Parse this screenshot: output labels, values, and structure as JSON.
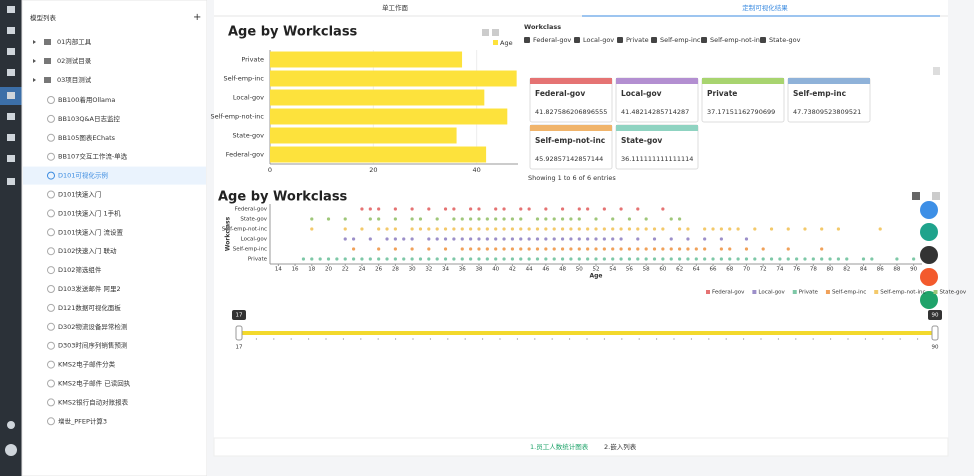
{
  "sidebar_title": "模型列表",
  "add_button": "+",
  "folders": [
    "01内部工具",
    "02测试目录",
    "03项目测试"
  ],
  "models": [
    {
      "label": "BB100着用Ollama"
    },
    {
      "label": "BB103Q&A日志监控"
    },
    {
      "label": "BB105图表EChats"
    },
    {
      "label": "BB107交互工作流-单选"
    },
    {
      "label": "D101可视化示例",
      "selected": true
    },
    {
      "label": "D101快速入门"
    },
    {
      "label": "D101快速入门 1手机"
    },
    {
      "label": "D101快速入门 流设置"
    },
    {
      "label": "D102快速入门 联动"
    },
    {
      "label": "D102筛选组件"
    },
    {
      "label": "D103发送邮件 阿里2"
    },
    {
      "label": "D121数据可视化面板"
    },
    {
      "label": "D302物流设备异常检测"
    },
    {
      "label": "D303时间序列销售预测"
    },
    {
      "label": "KMS2电子邮件分类"
    },
    {
      "label": "KMS2电子邮件 已读回执"
    },
    {
      "label": "KMS2银行自动对账报表"
    },
    {
      "label": "增世_PFEP计算3"
    }
  ],
  "tabs": [
    "单工作面",
    "定制可视化结果"
  ],
  "filter": {
    "title": "Workclass",
    "options": [
      "Federal-gov",
      "Local-gov",
      "Private",
      "Self-emp-inc",
      "Self-emp-not-inc",
      "State-gov"
    ]
  },
  "cards": [
    {
      "name": "Federal-gov",
      "value": 41.827586206896555,
      "color": "#e57373"
    },
    {
      "name": "Local-gov",
      "value": 41.48214285714287,
      "color": "#b38fd1"
    },
    {
      "name": "Private",
      "value": 37.17151162790699,
      "color": "#a8d46f"
    },
    {
      "name": "Self-emp-inc",
      "value": 47.73809523809521,
      "color": "#8fb2d9"
    },
    {
      "name": "Self-emp-not-inc",
      "value": 45.92857142857144,
      "color": "#f0b46b"
    },
    {
      "name": "State-gov",
      "value": 36.111111111111114,
      "color": "#8fd3c1"
    }
  ],
  "table_info": "Showing 1 to 6 of 6 entries",
  "chart_data": [
    {
      "type": "bar",
      "horizontal": true,
      "title": "Age by Workclass",
      "categories": [
        "Private",
        "Self-emp-inc",
        "Local-gov",
        "Self-emp-not-inc",
        "State-gov",
        "Federal-gov"
      ],
      "series": [
        {
          "name": "Age",
          "color": "#fde23c",
          "values": [
            37.17151162790699,
            47.73809523809521,
            41.48214285714287,
            45.92857142857144,
            36.111111111111114,
            41.827586206896555
          ]
        }
      ],
      "xlim": [
        0,
        48
      ],
      "xticks": [
        0,
        20,
        40
      ],
      "grid": true
    },
    {
      "type": "scatter",
      "title": "Age by Workclass",
      "xlabel": "Age",
      "ylabel": "Workclass",
      "categories": [
        "Federal-gov",
        "State-gov",
        "Self-emp-not-inc",
        "Local-gov",
        "Self-emp-inc",
        "Private"
      ],
      "series": [
        {
          "name": "Federal-gov",
          "color": "#e57373",
          "values": [
            24,
            25,
            26,
            28,
            30,
            32,
            34,
            35,
            37,
            38,
            40,
            41,
            43,
            44,
            46,
            48,
            50,
            51,
            53,
            55,
            57,
            60
          ]
        },
        {
          "name": "Local-gov",
          "color": "#9c8fc9",
          "values": [
            22,
            23,
            25,
            27,
            28,
            29,
            30,
            32,
            33,
            34,
            35,
            36,
            37,
            38,
            39,
            40,
            41,
            42,
            43,
            44,
            45,
            46,
            47,
            48,
            49,
            50,
            51,
            52,
            53,
            54,
            55,
            57,
            59,
            61,
            63,
            65,
            67,
            70
          ]
        },
        {
          "name": "Private",
          "color": "#7ec8a7",
          "values": [
            17,
            18,
            19,
            20,
            21,
            22,
            23,
            24,
            25,
            26,
            27,
            28,
            29,
            30,
            31,
            32,
            33,
            34,
            35,
            36,
            37,
            38,
            39,
            40,
            41,
            42,
            43,
            44,
            45,
            46,
            47,
            48,
            49,
            50,
            51,
            52,
            53,
            54,
            55,
            56,
            57,
            58,
            59,
            60,
            61,
            62,
            63,
            64,
            65,
            66,
            67,
            68,
            69,
            70,
            71,
            72,
            73,
            74,
            75,
            76,
            77,
            78,
            79,
            80,
            81,
            82,
            84,
            85,
            88,
            90
          ]
        },
        {
          "name": "Self-emp-inc",
          "color": "#f0a15a",
          "values": [
            23,
            26,
            28,
            30,
            32,
            34,
            36,
            37,
            38,
            39,
            40,
            41,
            42,
            43,
            44,
            45,
            46,
            47,
            48,
            49,
            50,
            51,
            52,
            53,
            54,
            55,
            56,
            57,
            58,
            59,
            60,
            61,
            62,
            63,
            64,
            65,
            67,
            68,
            70,
            72,
            75,
            79
          ]
        },
        {
          "name": "Self-emp-not-inc",
          "color": "#f3c96a",
          "values": [
            18,
            22,
            24,
            26,
            27,
            28,
            30,
            31,
            32,
            33,
            34,
            35,
            36,
            37,
            38,
            39,
            40,
            41,
            42,
            43,
            44,
            45,
            46,
            47,
            48,
            49,
            50,
            51,
            52,
            53,
            54,
            55,
            56,
            57,
            58,
            59,
            60,
            62,
            63,
            65,
            66,
            67,
            68,
            69,
            71,
            73,
            75,
            77,
            79,
            81,
            86
          ]
        },
        {
          "name": "State-gov",
          "color": "#9fc77a",
          "values": [
            18,
            20,
            22,
            25,
            26,
            28,
            30,
            31,
            33,
            35,
            36,
            37,
            38,
            39,
            40,
            41,
            42,
            43,
            45,
            46,
            47,
            48,
            49,
            50,
            52,
            54,
            56,
            58,
            61,
            62
          ]
        }
      ],
      "xlim": [
        13,
        91
      ],
      "xticks": [
        14,
        16,
        18,
        20,
        22,
        24,
        26,
        28,
        30,
        32,
        34,
        36,
        38,
        40,
        42,
        44,
        46,
        48,
        50,
        52,
        54,
        56,
        58,
        60,
        62,
        64,
        66,
        68,
        70,
        72,
        74,
        76,
        78,
        80,
        82,
        84,
        86,
        88,
        90
      ]
    }
  ],
  "slider": {
    "min": 17,
    "max": 90,
    "low": 17,
    "high": 90,
    "color": "#f3d92c"
  },
  "bottom_tabs": [
    "1.员工人数统计图表",
    "2.嵌入列表"
  ]
}
